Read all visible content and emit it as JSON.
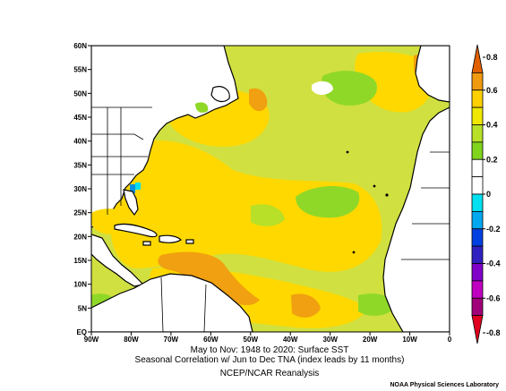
{
  "title_lines": [
    "May to Nov: 1948 to 2020: Surface SST",
    "Seasonal Correlation w/ Jun to Dec TNA (index leads by 11 months)"
  ],
  "source": "NCEP/NCAR Reanalysis",
  "credit": "NOAA Physical Sciences Laboratory",
  "map": {
    "lat_ticks": [
      "60N",
      "55N",
      "50N",
      "45N",
      "40N",
      "35N",
      "30N",
      "25N",
      "20N",
      "15N",
      "10N",
      "5N",
      "EQ"
    ],
    "lon_ticks": [
      "90W",
      "80W",
      "70W",
      "60W",
      "50W",
      "40W",
      "30W",
      "20W",
      "10W",
      "0"
    ]
  },
  "colorbar": {
    "ticks": [
      "0.8",
      "0.6",
      "0.4",
      "0.2",
      "0",
      "-0.2",
      "-0.4",
      "-0.6",
      "-0.8"
    ],
    "colors": [
      "#e06000",
      "#f09a10",
      "#ffd000",
      "#f0e800",
      "#b8e028",
      "#80d41e",
      "#ffffff",
      "#ffffff",
      "#00e0f0",
      "#00a8f0",
      "#0040e0",
      "#3020c0",
      "#8000c8",
      "#c000c0",
      "#a00078",
      "#e00020"
    ]
  },
  "palette": {
    "ocean_base": "#d0e040",
    "land": "#ffffff",
    "yellow": "#ffd800",
    "orange": "#f0a010",
    "green": "#90d828",
    "cyan": "#00e0f0",
    "blue": "#0090e0"
  }
}
